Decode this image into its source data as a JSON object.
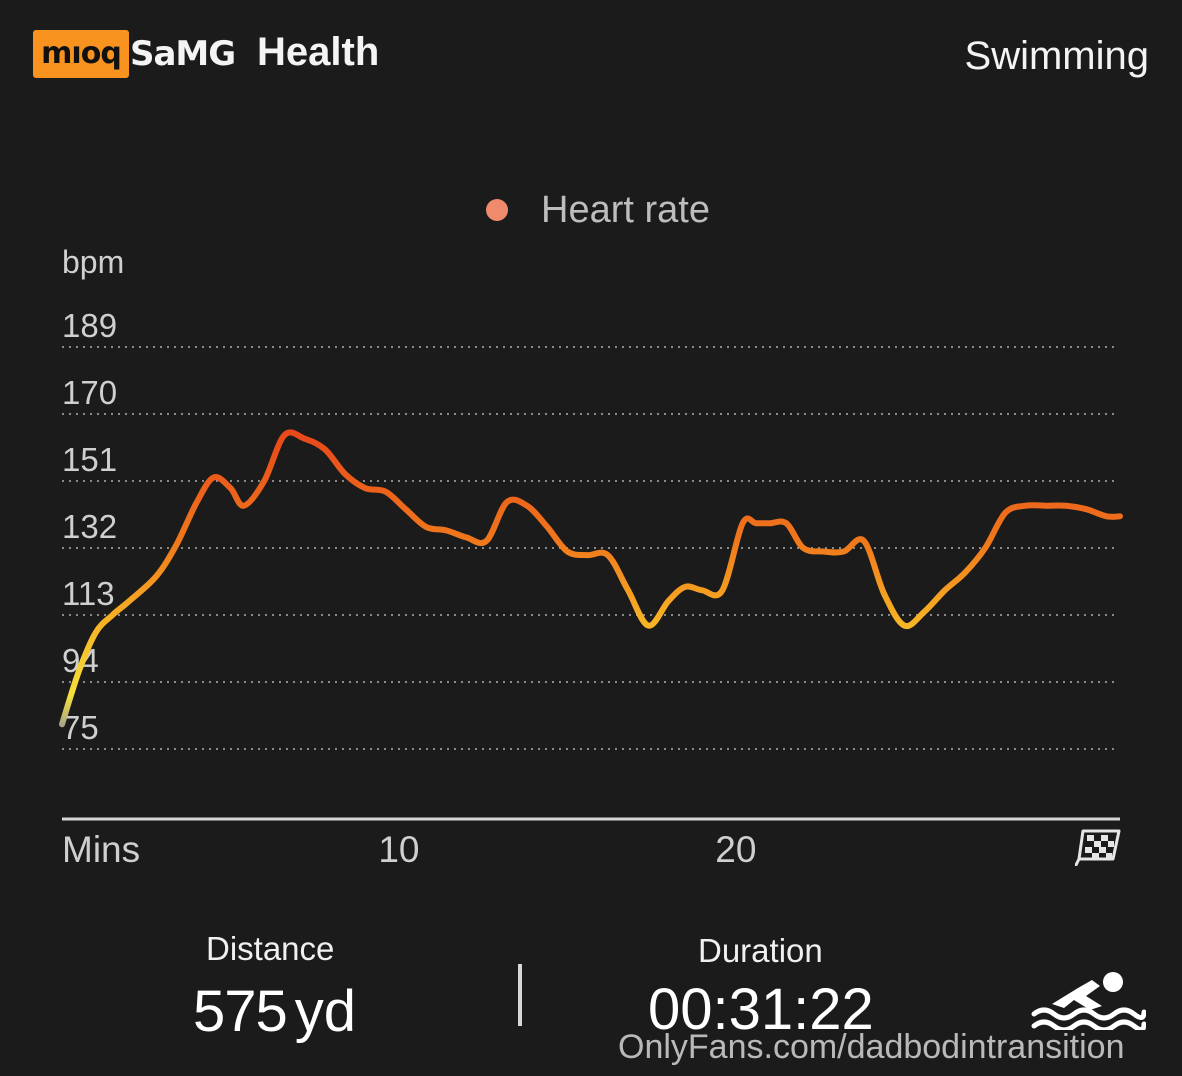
{
  "header": {
    "watermark_badge": "mıoq",
    "brand_prefix": "SaMG",
    "brand_name": "Health",
    "activity": "Swimming"
  },
  "legend": {
    "label": "Heart rate",
    "color": "#f08a6c"
  },
  "chart_data": {
    "type": "line",
    "title": "",
    "ylabel": "bpm",
    "xlabel": "Mins",
    "y_ticks": [
      75,
      94,
      113,
      132,
      151,
      170,
      189
    ],
    "ylim": [
      75,
      189
    ],
    "x_ticks": [
      10,
      20
    ],
    "xlim": [
      0,
      31.4
    ],
    "grid": true,
    "legend_position": "top-center",
    "series": [
      {
        "name": "Heart rate",
        "x": [
          0,
          0.5,
          1,
          1.5,
          2,
          2.8,
          3.4,
          4,
          4.5,
          5,
          5.4,
          6,
          6.6,
          7.2,
          7.8,
          8.4,
          9,
          9.6,
          10.2,
          10.8,
          11.4,
          12,
          12.6,
          13.2,
          13.8,
          14.4,
          15,
          15.6,
          16.2,
          16.8,
          17.4,
          18,
          18.5,
          19,
          19.6,
          20.2,
          20.6,
          21,
          21.5,
          22,
          22.6,
          23.2,
          23.8,
          24.4,
          25,
          25.6,
          26.2,
          26.8,
          27.4,
          28,
          28.6,
          29.2,
          29.8,
          30.4,
          31,
          31.4
        ],
        "values": [
          82,
          97,
          108,
          113,
          117,
          124,
          133,
          145,
          152,
          149,
          144,
          151,
          164,
          163,
          160,
          153,
          149,
          148,
          143,
          138,
          137,
          135,
          134,
          145,
          144,
          138,
          131,
          130,
          130,
          120,
          110,
          117,
          121,
          120,
          120,
          139,
          139,
          139,
          139,
          132,
          131,
          131,
          134,
          119,
          110,
          114,
          120,
          125,
          132,
          142,
          144,
          144,
          144,
          143,
          141,
          141
        ]
      }
    ],
    "color_scale": [
      "#9a9a9a",
      "#f5e03a",
      "#f7b024",
      "#f07a1c",
      "#e8481a"
    ]
  },
  "stats": {
    "distance_label": "Distance",
    "distance_value": "575",
    "distance_unit": "yd",
    "duration_label": "Duration",
    "duration_value": "00:31:22"
  },
  "icons": {
    "finish": "checkered-flag-icon",
    "activity": "swimmer-icon"
  },
  "watermark": "OnlyFans.com/dadbodintransition"
}
